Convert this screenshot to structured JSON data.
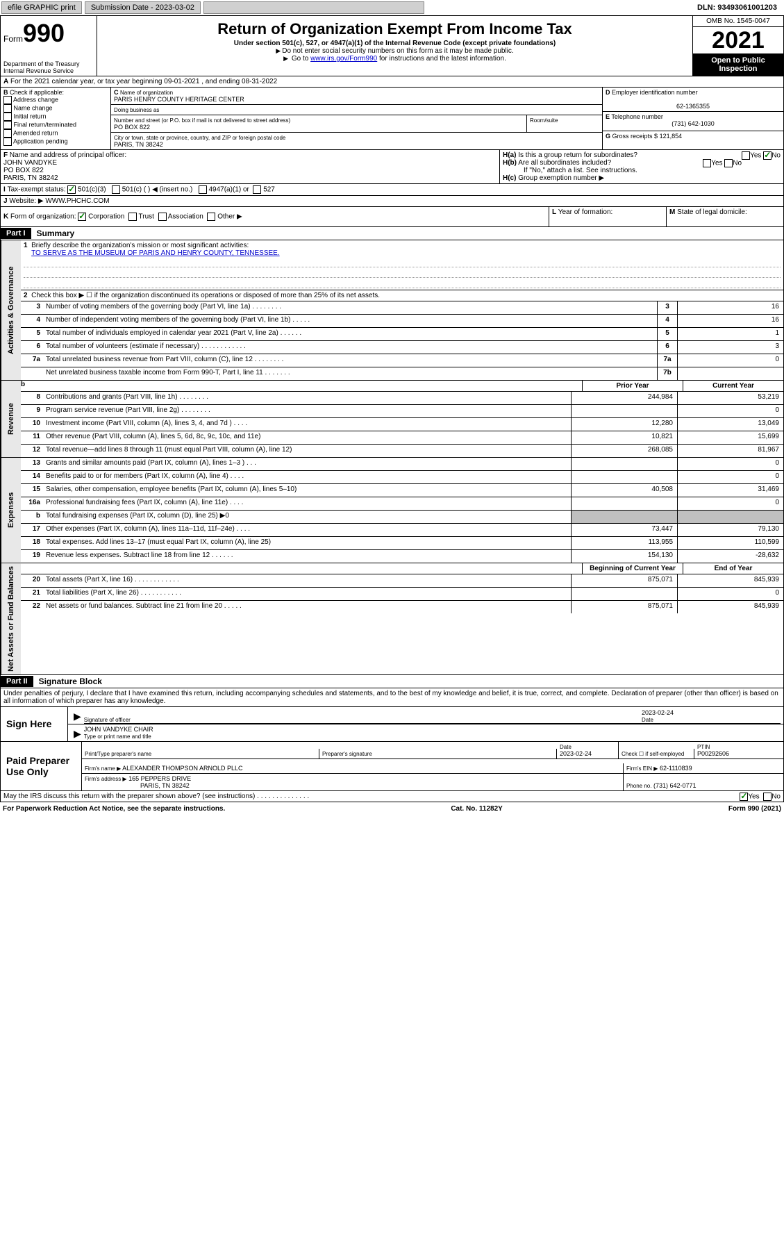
{
  "topbar": {
    "efile": "efile GRAPHIC print",
    "submission_label": "Submission Date - 2023-03-02",
    "dln": "DLN: 93493061001203"
  },
  "header": {
    "form_label": "Form",
    "form_number": "990",
    "dept": "Department of the Treasury",
    "irs": "Internal Revenue Service",
    "title": "Return of Organization Exempt From Income Tax",
    "subtitle": "Under section 501(c), 527, or 4947(a)(1) of the Internal Revenue Code (except private foundations)",
    "instr1": "Do not enter social security numbers on this form as it may be made public.",
    "instr2_pre": "Go to ",
    "instr2_link": "www.irs.gov/Form990",
    "instr2_post": " for instructions and the latest information.",
    "omb": "OMB No. 1545-0047",
    "year": "2021",
    "public1": "Open to Public",
    "public2": "Inspection"
  },
  "A": {
    "text": "For the 2021 calendar year, or tax year beginning 09-01-2021   , and ending 08-31-2022"
  },
  "B": {
    "label": "Check if applicable:",
    "opts": [
      "Address change",
      "Name change",
      "Initial return",
      "Final return/terminated",
      "Amended return",
      "Application pending"
    ]
  },
  "C": {
    "name_label": "Name of organization",
    "name": "PARIS HENRY COUNTY HERITAGE CENTER",
    "dba_label": "Doing business as",
    "addr_label": "Number and street (or P.O. box if mail is not delivered to street address)",
    "room_label": "Room/suite",
    "addr": "PO BOX 822",
    "city_label": "City or town, state or province, country, and ZIP or foreign postal code",
    "city": "PARIS, TN  38242"
  },
  "D": {
    "label": "Employer identification number",
    "value": "62-1365355"
  },
  "E": {
    "label": "Telephone number",
    "value": "(731) 642-1030"
  },
  "G": {
    "label": "Gross receipts $",
    "value": "121,854"
  },
  "F": {
    "label": "Name and address of principal officer:",
    "name": "JOHN VANDYKE",
    "addr1": "PO BOX 822",
    "addr2": "PARIS, TN  38242"
  },
  "H": {
    "a": "Is this a group return for subordinates?",
    "b": "Are all subordinates included?",
    "b_note": "If \"No,\" attach a list. See instructions.",
    "c": "Group exemption number ▶",
    "yes": "Yes",
    "no": "No"
  },
  "I": {
    "label": "Tax-exempt status:",
    "opt1": "501(c)(3)",
    "opt2": "501(c) (   ) ◀ (insert no.)",
    "opt3": "4947(a)(1) or",
    "opt4": "527"
  },
  "J": {
    "label": "Website: ▶",
    "value": "WWW.PHCHC.COM"
  },
  "K": {
    "label": "Form of organization:",
    "opts": [
      "Corporation",
      "Trust",
      "Association",
      "Other ▶"
    ]
  },
  "L": {
    "label": "Year of formation:"
  },
  "M": {
    "label": "State of legal domicile:"
  },
  "part1": {
    "label": "Part I",
    "title": "Summary",
    "sect_gov": "Activities & Governance",
    "sect_rev": "Revenue",
    "sect_exp": "Expenses",
    "sect_net": "Net Assets or Fund Balances",
    "mission_label": "Briefly describe the organization's mission or most significant activities:",
    "mission": "TO SERVE AS THE MUSEUM OF PARIS AND HENRY COUNTY, TENNESSEE.",
    "line2": "Check this box ▶ ☐  if the organization discontinued its operations or disposed of more than 25% of its net assets.",
    "col_prior": "Prior Year",
    "col_curr": "Current Year",
    "col_beg": "Beginning of Current Year",
    "col_end": "End of Year",
    "lines_gov": [
      {
        "n": "3",
        "desc": "Number of voting members of the governing body (Part VI, line 1a)   .    .    .    .    .    .    .    .",
        "box": "3",
        "v": "16"
      },
      {
        "n": "4",
        "desc": "Number of independent voting members of the governing body (Part VI, line 1b)   .    .    .    .    .",
        "box": "4",
        "v": "16"
      },
      {
        "n": "5",
        "desc": "Total number of individuals employed in calendar year 2021 (Part V, line 2a)   .    .    .    .    .    .",
        "box": "5",
        "v": "1"
      },
      {
        "n": "6",
        "desc": "Total number of volunteers (estimate if necessary)   .    .    .    .    .    .    .    .    .    .    .    .",
        "box": "6",
        "v": "3"
      },
      {
        "n": "7a",
        "desc": "Total unrelated business revenue from Part VIII, column (C), line 12   .    .    .    .    .    .    .    .",
        "box": "7a",
        "v": "0"
      },
      {
        "n": "",
        "desc": "Net unrelated business taxable income from Form 990-T, Part I, line 11   .    .    .    .    .    .    .",
        "box": "7b",
        "v": ""
      }
    ],
    "lines_rev": [
      {
        "n": "8",
        "desc": "Contributions and grants (Part VIII, line 1h)   .    .    .    .    .    .    .    .",
        "p": "244,984",
        "c": "53,219"
      },
      {
        "n": "9",
        "desc": "Program service revenue (Part VIII, line 2g)   .    .    .    .    .    .    .    .",
        "p": "",
        "c": "0"
      },
      {
        "n": "10",
        "desc": "Investment income (Part VIII, column (A), lines 3, 4, and 7d )   .    .    .    .",
        "p": "12,280",
        "c": "13,049"
      },
      {
        "n": "11",
        "desc": "Other revenue (Part VIII, column (A), lines 5, 6d, 8c, 9c, 10c, and 11e)",
        "p": "10,821",
        "c": "15,699"
      },
      {
        "n": "12",
        "desc": "Total revenue—add lines 8 through 11 (must equal Part VIII, column (A), line 12)",
        "p": "268,085",
        "c": "81,967"
      }
    ],
    "lines_exp": [
      {
        "n": "13",
        "desc": "Grants and similar amounts paid (Part IX, column (A), lines 1–3 )   .    .    .",
        "p": "",
        "c": "0"
      },
      {
        "n": "14",
        "desc": "Benefits paid to or for members (Part IX, column (A), line 4)   .    .    .    .",
        "p": "",
        "c": "0"
      },
      {
        "n": "15",
        "desc": "Salaries, other compensation, employee benefits (Part IX, column (A), lines 5–10)",
        "p": "40,508",
        "c": "31,469"
      },
      {
        "n": "16a",
        "desc": "Professional fundraising fees (Part IX, column (A), line 11e)   .    .    .    .",
        "p": "",
        "c": "0"
      },
      {
        "n": "b",
        "desc": "Total fundraising expenses (Part IX, column (D), line 25) ▶0",
        "p": "SHADE",
        "c": "SHADE"
      },
      {
        "n": "17",
        "desc": "Other expenses (Part IX, column (A), lines 11a–11d, 11f–24e)   .    .    .    .",
        "p": "73,447",
        "c": "79,130"
      },
      {
        "n": "18",
        "desc": "Total expenses. Add lines 13–17 (must equal Part IX, column (A), line 25)",
        "p": "113,955",
        "c": "110,599"
      },
      {
        "n": "19",
        "desc": "Revenue less expenses. Subtract line 18 from line 12   .    .    .    .    .    .",
        "p": "154,130",
        "c": "-28,632"
      }
    ],
    "lines_net": [
      {
        "n": "20",
        "desc": "Total assets (Part X, line 16)   .    .    .    .    .    .    .    .    .    .    .    .",
        "p": "875,071",
        "c": "845,939"
      },
      {
        "n": "21",
        "desc": "Total liabilities (Part X, line 26)   .    .    .    .    .    .    .    .    .    .    .",
        "p": "",
        "c": "0"
      },
      {
        "n": "22",
        "desc": "Net assets or fund balances. Subtract line 21 from line 20   .    .    .    .    .",
        "p": "875,071",
        "c": "845,939"
      }
    ]
  },
  "part2": {
    "label": "Part II",
    "title": "Signature Block",
    "declaration": "Under penalties of perjury, I declare that I have examined this return, including accompanying schedules and statements, and to the best of my knowledge and belief, it is true, correct, and complete. Declaration of preparer (other than officer) is based on all information of which preparer has any knowledge.",
    "sign_here": "Sign Here",
    "sig_officer": "Signature of officer",
    "sig_date": "2023-02-24",
    "date_label": "Date",
    "officer_name": "JOHN VANDYKE  CHAIR",
    "name_label": "Type or print name and title",
    "paid": "Paid Preparer Use Only",
    "prep_name_label": "Print/Type preparer's name",
    "prep_sig_label": "Preparer's signature",
    "prep_date": "2023-02-24",
    "self_emp": "Check ☐ if self-employed",
    "ptin_label": "PTIN",
    "ptin": "P00292606",
    "firm_name_label": "Firm's name     ▶",
    "firm_name": "ALEXANDER THOMPSON ARNOLD PLLC",
    "firm_ein_label": "Firm's EIN ▶",
    "firm_ein": "62-1110839",
    "firm_addr_label": "Firm's address ▶",
    "firm_addr1": "165 PEPPERS DRIVE",
    "firm_addr2": "PARIS, TN  38242",
    "phone_label": "Phone no.",
    "phone": "(731) 642-0771",
    "discuss": "May the IRS discuss this return with the preparer shown above? (see instructions)   .    .    .    .    .    .    .    .    .    .    .    .    .    .",
    "yes": "Yes",
    "no": "No"
  },
  "footer": {
    "paperwork": "For Paperwork Reduction Act Notice, see the separate instructions.",
    "cat": "Cat. No. 11282Y",
    "form": "Form 990 (2021)"
  }
}
